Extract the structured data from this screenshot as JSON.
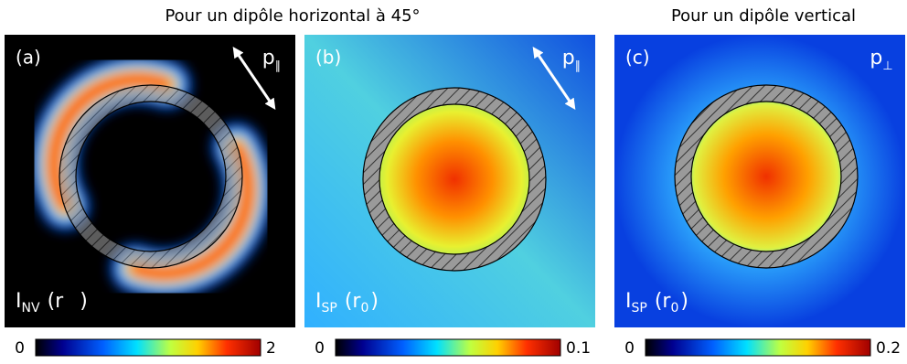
{
  "headers": [
    "Pour un dipôle horizontal à 45°",
    "Pour un dipôle vertical"
  ],
  "panels": [
    {
      "label": "(a)",
      "dipole": {
        "symbol": "p",
        "sub": "∥"
      },
      "intensity": {
        "symbol": "I",
        "sub": "NV",
        "arg": "(r",
        "close": ")"
      },
      "colorbar": [
        0,
        2
      ]
    },
    {
      "label": "(b)",
      "dipole": {
        "symbol": "p",
        "sub": "∥"
      },
      "intensity": {
        "symbol": "I",
        "sub": "SP",
        "arg": "(r",
        "arg_sub": "0",
        "close": ")"
      },
      "colorbar": [
        0,
        0.1
      ]
    },
    {
      "label": "(c)",
      "dipole": {
        "symbol": "p",
        "sub": "⊥"
      },
      "intensity": {
        "symbol": "I",
        "sub": "SP",
        "arg": "(r",
        "arg_sub": "0",
        "close": ")"
      },
      "colorbar": [
        0,
        0.2
      ]
    }
  ]
}
